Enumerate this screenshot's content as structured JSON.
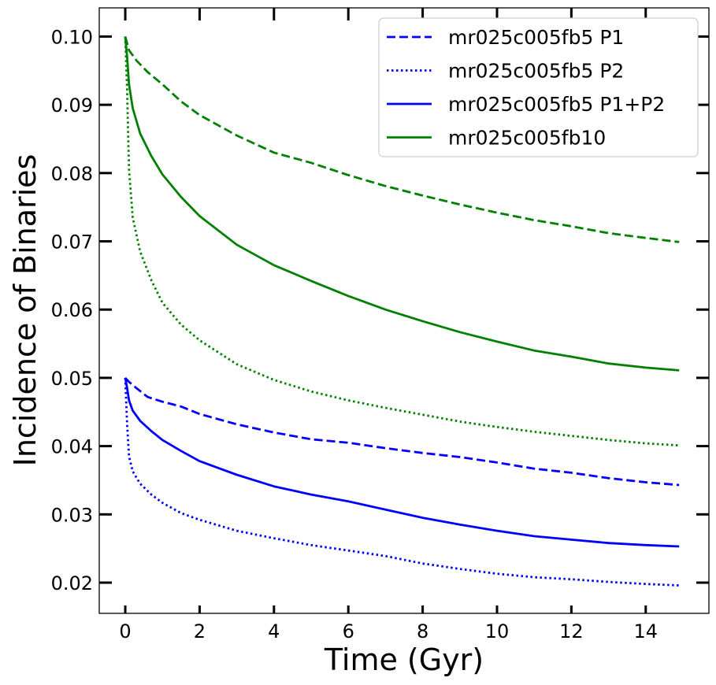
{
  "colors": {
    "green": "#008000",
    "blue": "#0000ff",
    "axis": "#000000",
    "legend_border": "#cccccc"
  },
  "chart_data": {
    "type": "line",
    "title": "",
    "xlabel": "Time (Gyr)",
    "ylabel": "Incidence of Binaries",
    "xlim": [
      -0.7,
      15.7
    ],
    "ylim": [
      0.0155,
      0.1042
    ],
    "xticks": [
      0,
      2,
      4,
      6,
      8,
      10,
      12,
      14
    ],
    "xtick_labels": [
      "0",
      "2",
      "4",
      "6",
      "8",
      "10",
      "12",
      "14"
    ],
    "yticks": [
      0.02,
      0.03,
      0.04,
      0.05,
      0.06,
      0.07,
      0.08,
      0.09,
      0.1
    ],
    "ytick_labels": [
      "0.02",
      "0.03",
      "0.04",
      "0.05",
      "0.06",
      "0.07",
      "0.08",
      "0.09",
      "0.10"
    ],
    "grid": false,
    "legend_position": "top-right",
    "legend": [
      {
        "label": "mr025c005fb5 P1",
        "style": "dashed",
        "color": "blue"
      },
      {
        "label": "mr025c005fb5 P2",
        "style": "dotted",
        "color": "blue"
      },
      {
        "label": "mr025c005fb5 P1+P2",
        "style": "solid",
        "color": "blue"
      },
      {
        "label": "mr025c005fb10",
        "style": "solid",
        "color": "green"
      }
    ],
    "series": [
      {
        "name": "green dashed",
        "color": "green",
        "style": "dashed",
        "x": [
          0,
          0.1,
          0.3,
          0.6,
          1,
          1.5,
          2,
          3,
          4,
          5,
          6,
          7,
          8,
          9,
          10,
          11,
          12,
          13,
          14,
          14.9
        ],
        "y": [
          0.1,
          0.098,
          0.0965,
          0.0948,
          0.093,
          0.0905,
          0.0885,
          0.0855,
          0.083,
          0.0815,
          0.0797,
          0.0781,
          0.0767,
          0.0754,
          0.0742,
          0.0731,
          0.0722,
          0.0712,
          0.0705,
          0.0699
        ]
      },
      {
        "name": "green dotted",
        "color": "green",
        "style": "dotted",
        "x": [
          0,
          0.05,
          0.1,
          0.2,
          0.4,
          0.7,
          1,
          1.5,
          2,
          3,
          4,
          5,
          6,
          7,
          8,
          9,
          10,
          11,
          12,
          13,
          14,
          14.9
        ],
        "y": [
          0.1,
          0.092,
          0.0805,
          0.0735,
          0.0685,
          0.0643,
          0.061,
          0.0578,
          0.0555,
          0.052,
          0.0497,
          0.048,
          0.0467,
          0.0456,
          0.0446,
          0.0436,
          0.0428,
          0.0421,
          0.0415,
          0.0409,
          0.0404,
          0.0401
        ]
      },
      {
        "name": "green solid",
        "color": "green",
        "style": "solid",
        "x": [
          0,
          0.05,
          0.1,
          0.2,
          0.4,
          0.7,
          1,
          1.5,
          2,
          3,
          4,
          5,
          6,
          7,
          8,
          9,
          10,
          11,
          12,
          13,
          14,
          14.9
        ],
        "y": [
          0.1,
          0.097,
          0.093,
          0.0895,
          0.0858,
          0.0825,
          0.0798,
          0.0765,
          0.0737,
          0.0695,
          0.0665,
          0.0642,
          0.062,
          0.06,
          0.0583,
          0.0567,
          0.0553,
          0.054,
          0.0531,
          0.0521,
          0.0515,
          0.0511
        ]
      },
      {
        "name": "blue dashed",
        "color": "blue",
        "style": "dashed",
        "x": [
          0,
          0.1,
          0.3,
          0.6,
          1,
          1.5,
          2,
          3,
          4,
          5,
          6,
          7,
          8,
          9,
          10,
          11,
          12,
          13,
          14,
          14.9
        ],
        "y": [
          0.05,
          0.0494,
          0.0485,
          0.0472,
          0.0465,
          0.0458,
          0.0447,
          0.0432,
          0.042,
          0.041,
          0.0405,
          0.0397,
          0.039,
          0.0384,
          0.0376,
          0.0367,
          0.0361,
          0.0353,
          0.0347,
          0.0343
        ]
      },
      {
        "name": "blue dotted",
        "color": "blue",
        "style": "dotted",
        "x": [
          0,
          0.05,
          0.1,
          0.2,
          0.4,
          0.7,
          1,
          1.5,
          2,
          3,
          4,
          5,
          6,
          7,
          8,
          9,
          10,
          11,
          12,
          13,
          14,
          14.9
        ],
        "y": [
          0.05,
          0.0432,
          0.0385,
          0.0363,
          0.0345,
          0.0329,
          0.0317,
          0.0302,
          0.0292,
          0.0276,
          0.0265,
          0.0255,
          0.0247,
          0.0239,
          0.0228,
          0.022,
          0.0213,
          0.0208,
          0.0205,
          0.0201,
          0.0198,
          0.0196
        ]
      },
      {
        "name": "blue solid",
        "color": "blue",
        "style": "solid",
        "x": [
          0,
          0.05,
          0.1,
          0.2,
          0.4,
          0.7,
          1,
          1.5,
          2,
          3,
          4,
          5,
          6,
          7,
          8,
          9,
          10,
          11,
          12,
          13,
          14,
          14.9
        ],
        "y": [
          0.05,
          0.0485,
          0.0467,
          0.0452,
          0.0437,
          0.0422,
          0.0409,
          0.0393,
          0.0378,
          0.0358,
          0.0341,
          0.0329,
          0.0319,
          0.0307,
          0.0295,
          0.0285,
          0.0276,
          0.0268,
          0.0263,
          0.0258,
          0.0255,
          0.0253
        ]
      }
    ]
  }
}
